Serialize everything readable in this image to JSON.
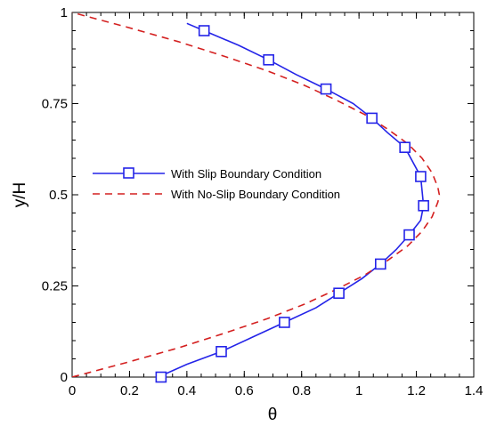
{
  "chart_data": {
    "type": "line",
    "xlabel": "θ",
    "ylabel": "y/H",
    "xlim": [
      0,
      1.4
    ],
    "ylim": [
      0,
      1
    ],
    "x_ticks": [
      "0",
      "0.2",
      "0.4",
      "0.6",
      "0.8",
      "1",
      "1.2",
      "1.4"
    ],
    "y_ticks": [
      "0",
      "0.25",
      "0.5",
      "0.75",
      "1"
    ],
    "grid": false,
    "legend_position": "center-left",
    "series": [
      {
        "name": "With Slip Boundary Condition",
        "style": "solid-line-square-markers",
        "color": "#2424e8",
        "x": [
          0.3,
          0.4,
          0.52,
          0.63,
          0.74,
          0.85,
          0.93,
          1.01,
          1.075,
          1.13,
          1.175,
          1.215,
          1.225,
          1.215,
          1.16,
          1.1,
          1.045,
          0.98,
          0.885,
          0.78,
          0.685,
          0.58,
          0.46,
          0.4
        ],
        "y": [
          0.0,
          0.035,
          0.07,
          0.11,
          0.15,
          0.19,
          0.23,
          0.27,
          0.31,
          0.35,
          0.39,
          0.43,
          0.47,
          0.55,
          0.63,
          0.67,
          0.71,
          0.75,
          0.79,
          0.83,
          0.87,
          0.91,
          0.95,
          0.97
        ],
        "markers": [
          {
            "x": 0.31,
            "y": 0.0
          },
          {
            "x": 0.52,
            "y": 0.07
          },
          {
            "x": 0.74,
            "y": 0.15
          },
          {
            "x": 0.93,
            "y": 0.23
          },
          {
            "x": 1.075,
            "y": 0.31
          },
          {
            "x": 1.175,
            "y": 0.39
          },
          {
            "x": 1.225,
            "y": 0.47
          },
          {
            "x": 1.215,
            "y": 0.55
          },
          {
            "x": 1.16,
            "y": 0.63
          },
          {
            "x": 1.045,
            "y": 0.71
          },
          {
            "x": 0.885,
            "y": 0.79
          },
          {
            "x": 0.685,
            "y": 0.87
          },
          {
            "x": 0.46,
            "y": 0.95
          }
        ]
      },
      {
        "name": "With No-Slip Boundary Condition",
        "style": "dashed-line",
        "color": "#d42020",
        "x": [
          0.0,
          0.19,
          0.37,
          0.53,
          0.68,
          0.81,
          0.92,
          1.02,
          1.1,
          1.17,
          1.22,
          1.255,
          1.275,
          1.28,
          1.275,
          1.255,
          1.22,
          1.17,
          1.1,
          1.02,
          0.92,
          0.81,
          0.68,
          0.53,
          0.37,
          0.19,
          0.0
        ],
        "y": [
          0.0,
          0.04,
          0.08,
          0.12,
          0.16,
          0.2,
          0.24,
          0.28,
          0.32,
          0.36,
          0.4,
          0.44,
          0.48,
          0.5,
          0.52,
          0.56,
          0.6,
          0.64,
          0.68,
          0.72,
          0.76,
          0.8,
          0.84,
          0.88,
          0.92,
          0.96,
          1.0
        ]
      }
    ]
  }
}
